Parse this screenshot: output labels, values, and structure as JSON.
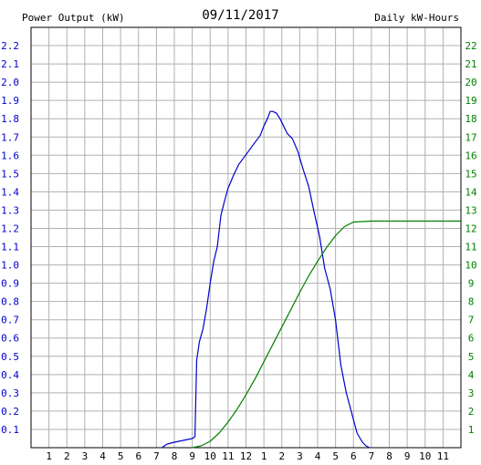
{
  "chart_data": {
    "type": "line",
    "title": "09/11/2017",
    "left_axis_label": "Power Output (kW)",
    "right_axis_label": "Daily kW-Hours",
    "colors": {
      "power": "#0000cc",
      "energy": "#008000",
      "grid": "#b0b0b0",
      "frame": "#000000",
      "left_text": "#0000cc",
      "right_text": "#008000"
    },
    "grid": true,
    "xlim": [
      0,
      24
    ],
    "x_tick_labels": [
      "1",
      "2",
      "3",
      "4",
      "5",
      "6",
      "7",
      "8",
      "9",
      "10",
      "11",
      "12",
      "1",
      "2",
      "3",
      "4",
      "5",
      "6",
      "7",
      "8",
      "9",
      "10",
      "11"
    ],
    "left_ylim": [
      0,
      2.3
    ],
    "left_ticks": [
      "0.1",
      "0.2",
      "0.3",
      "0.4",
      "0.5",
      "0.6",
      "0.7",
      "0.8",
      "0.9",
      "1.0",
      "1.1",
      "1.2",
      "1.3",
      "1.4",
      "1.5",
      "1.6",
      "1.7",
      "1.8",
      "1.9",
      "2.0",
      "2.1",
      "2.2"
    ],
    "right_ylim": [
      0,
      23
    ],
    "right_ticks": [
      "1",
      "2",
      "3",
      "4",
      "5",
      "6",
      "7",
      "8",
      "9",
      "10",
      "11",
      "12",
      "13",
      "14",
      "15",
      "16",
      "17",
      "18",
      "19",
      "20",
      "21",
      "22"
    ],
    "series": [
      {
        "name": "Power Output (kW)",
        "axis": "left",
        "x": [
          7.3,
          7.6,
          8.0,
          8.5,
          9.0,
          9.15,
          9.25,
          9.4,
          9.6,
          9.8,
          10.0,
          10.2,
          10.4,
          10.6,
          10.8,
          11.0,
          11.3,
          11.6,
          11.9,
          12.2,
          12.5,
          12.8,
          13.0,
          13.2,
          13.35,
          13.5,
          13.7,
          13.9,
          14.1,
          14.3,
          14.6,
          14.9,
          15.2,
          15.5,
          15.8,
          16.1,
          16.4,
          16.7,
          17.0,
          17.3,
          17.6,
          17.9,
          18.2,
          18.5,
          18.7,
          18.9
        ],
        "y": [
          0.0,
          0.02,
          0.03,
          0.04,
          0.05,
          0.06,
          0.48,
          0.58,
          0.65,
          0.76,
          0.9,
          1.02,
          1.1,
          1.27,
          1.35,
          1.42,
          1.49,
          1.55,
          1.59,
          1.63,
          1.67,
          1.71,
          1.76,
          1.8,
          1.84,
          1.84,
          1.83,
          1.8,
          1.76,
          1.72,
          1.69,
          1.62,
          1.52,
          1.43,
          1.29,
          1.16,
          0.98,
          0.87,
          0.7,
          0.45,
          0.3,
          0.19,
          0.08,
          0.03,
          0.01,
          0.0
        ]
      },
      {
        "name": "Daily kW-Hours",
        "axis": "right",
        "x": [
          9.0,
          9.5,
          10.0,
          10.5,
          11.0,
          11.5,
          12.0,
          12.5,
          13.0,
          13.5,
          14.0,
          14.5,
          15.0,
          15.5,
          16.0,
          16.5,
          17.0,
          17.5,
          18.0,
          19.0,
          20.0,
          21.0,
          22.0,
          23.0,
          24.0
        ],
        "y": [
          0.0,
          0.1,
          0.35,
          0.8,
          1.4,
          2.1,
          2.9,
          3.75,
          4.7,
          5.65,
          6.6,
          7.55,
          8.5,
          9.4,
          10.2,
          10.95,
          11.6,
          12.1,
          12.35,
          12.4,
          12.4,
          12.4,
          12.4,
          12.4,
          12.4
        ]
      }
    ]
  }
}
